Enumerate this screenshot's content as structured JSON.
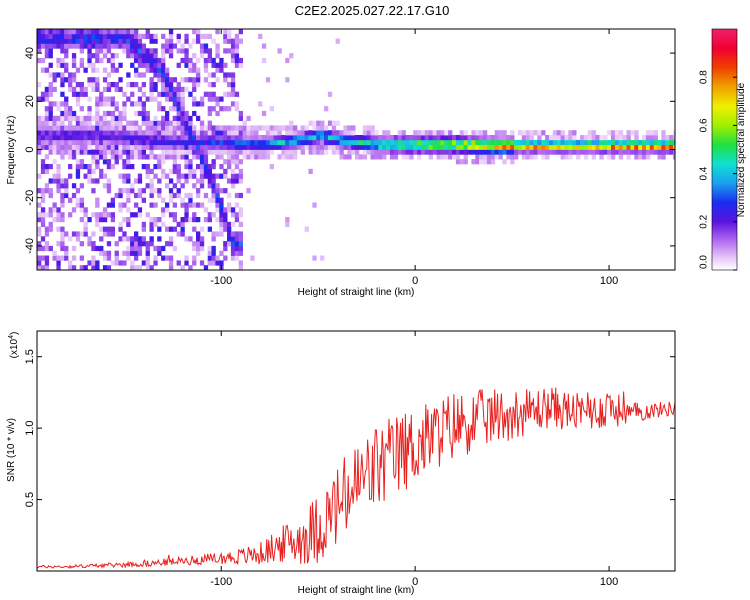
{
  "figure": {
    "title": "C2E2.2025.027.22.17.G10"
  },
  "chart_data": [
    {
      "type": "heatmap",
      "xlabel": "Height of straight line (km)",
      "ylabel": "Frequency (Hz)",
      "xlim": [
        -195,
        134
      ],
      "ylim": [
        -50,
        50
      ],
      "x_ticks": [
        -100,
        0,
        100
      ],
      "y_ticks": [
        -40,
        -20,
        0,
        20,
        40
      ],
      "colorbar": {
        "label": "Normalized spectral amplitude",
        "range": [
          0,
          1
        ],
        "ticks": [
          0.0,
          0.2,
          0.4,
          0.6,
          0.8
        ],
        "tick_labels": [
          "0.0",
          "0.2",
          "0.4",
          "0.6",
          "0.8"
        ]
      },
      "ridge": [
        {
          "x": -180,
          "y": 5,
          "amp": 0.25
        },
        {
          "x": -160,
          "y": 5,
          "amp": 0.25
        },
        {
          "x": -140,
          "y": 3,
          "amp": 0.25
        },
        {
          "x": -120,
          "y": 2,
          "amp": 0.25
        },
        {
          "x": -100,
          "y": 2,
          "amp": 0.3
        },
        {
          "x": -80,
          "y": 1,
          "amp": 0.4
        },
        {
          "x": -60,
          "y": 3,
          "amp": 0.45
        },
        {
          "x": -50,
          "y": 5,
          "amp": 0.45
        },
        {
          "x": -40,
          "y": 3,
          "amp": 0.45
        },
        {
          "x": -20,
          "y": 1,
          "amp": 0.55
        },
        {
          "x": 0,
          "y": 1,
          "amp": 0.7
        },
        {
          "x": 20,
          "y": 1,
          "amp": 0.75
        },
        {
          "x": 40,
          "y": 0.5,
          "amp": 0.85
        },
        {
          "x": 60,
          "y": 0.5,
          "amp": 0.9
        },
        {
          "x": 80,
          "y": 0.5,
          "amp": 0.9
        },
        {
          "x": 100,
          "y": 0.5,
          "amp": 0.95
        },
        {
          "x": 130,
          "y": 0.5,
          "amp": 0.95
        }
      ],
      "diagonal_track": [
        {
          "x": -150,
          "y": 45
        },
        {
          "x": -130,
          "y": 30
        },
        {
          "x": -118,
          "y": 8
        },
        {
          "x": -105,
          "y": -15
        },
        {
          "x": -95,
          "y": -40
        }
      ]
    },
    {
      "type": "line",
      "xlabel": "Height of straight line (km)",
      "ylabel": "SNR (10 * v/v)",
      "y_multiplier_label": "(x10",
      "y_multiplier_exp": "4",
      "y_multiplier_close": ")",
      "xlim": [
        -195,
        134
      ],
      "ylim": [
        0,
        1.68
      ],
      "x_ticks": [
        -100,
        0,
        100
      ],
      "y_ticks": [
        0.5,
        1.0,
        1.5
      ],
      "y_tick_labels": [
        "0.5",
        "1.0",
        "1.5"
      ],
      "color": "#e8211f",
      "series": [
        {
          "x": [
            -195,
            -180,
            -160,
            -140,
            -120,
            -100,
            -90,
            -80,
            -70,
            -60,
            -50,
            -40,
            -30,
            -20,
            -10,
            0,
            10,
            20,
            30,
            40,
            50,
            60,
            70,
            80,
            90,
            100,
            110,
            120,
            134
          ],
          "y": [
            0.03,
            0.03,
            0.04,
            0.05,
            0.07,
            0.09,
            0.1,
            0.12,
            0.18,
            0.22,
            0.3,
            0.45,
            0.6,
            0.72,
            0.8,
            0.88,
            0.95,
            1.02,
            1.05,
            1.08,
            1.1,
            1.12,
            1.15,
            1.12,
            1.1,
            1.15,
            1.1,
            1.12,
            1.14
          ],
          "noise": [
            0.01,
            0.01,
            0.015,
            0.02,
            0.03,
            0.04,
            0.06,
            0.08,
            0.12,
            0.18,
            0.25,
            0.3,
            0.32,
            0.32,
            0.3,
            0.28,
            0.25,
            0.25,
            0.22,
            0.2,
            0.18,
            0.16,
            0.15,
            0.14,
            0.12,
            0.15,
            0.08,
            0.06,
            0.05
          ]
        }
      ]
    }
  ]
}
